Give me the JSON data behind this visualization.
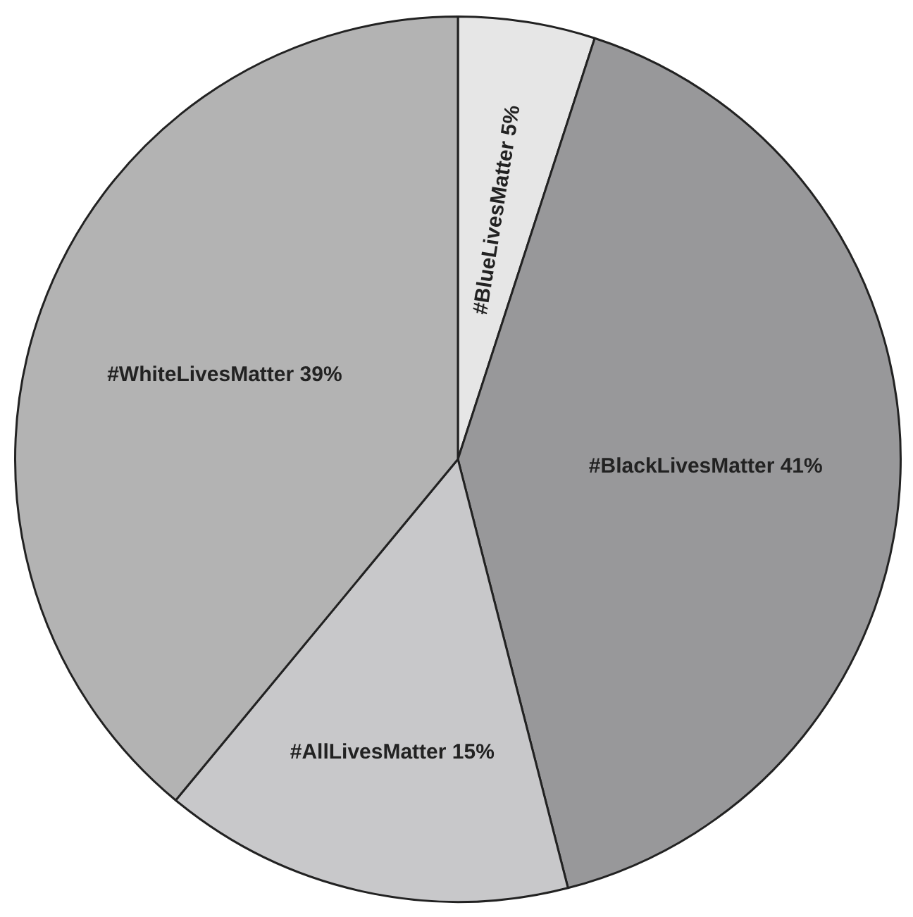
{
  "chart_data": {
    "type": "pie",
    "categories": [
      "#BlueLivesMatter",
      "#BlackLivesMatter",
      "#AllLivesMatter",
      "#WhiteLivesMatter"
    ],
    "values": [
      5,
      41,
      15,
      39
    ],
    "value_labels": [
      "5%",
      "41%",
      "15%",
      "39%"
    ],
    "colors": [
      "#e6e6e6",
      "#98989a",
      "#c8c8ca",
      "#b3b3b3"
    ],
    "legend": false
  }
}
